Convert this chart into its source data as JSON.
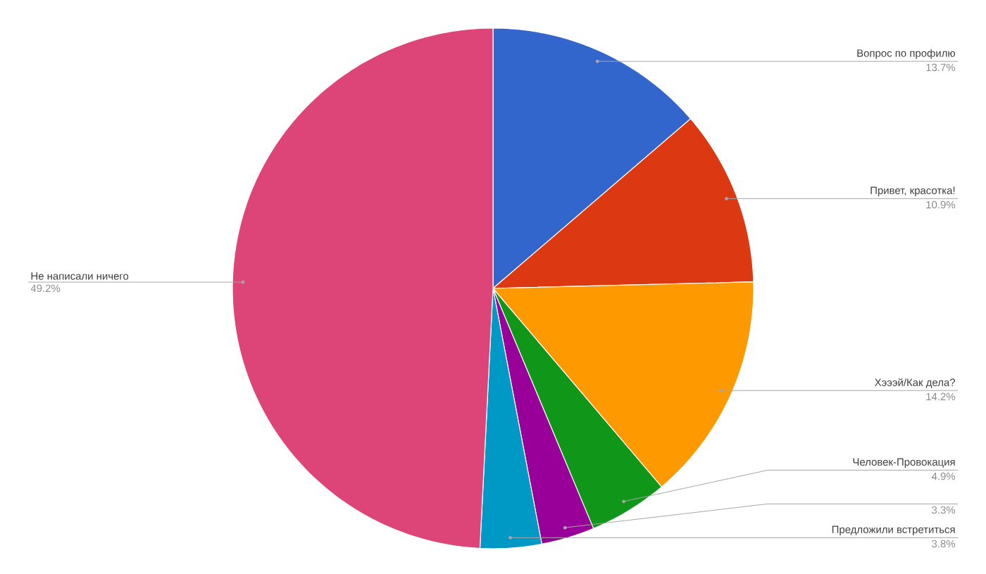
{
  "chart_data": {
    "type": "pie",
    "categories": [
      "Вопрос по профилю",
      "Привет, красотка!",
      "Хэээй/Как дела?",
      "Человек-Провокация",
      null,
      "Предложили встретиться",
      "Не написали ничего"
    ],
    "values": [
      13.7,
      10.9,
      14.2,
      4.9,
      3.3,
      3.8,
      49.2
    ],
    "value_labels": [
      "13.7%",
      "10.9%",
      "14.2%",
      "4.9%",
      "3.3%",
      "3.8%",
      "49.2%"
    ],
    "colors": [
      "#3366cc",
      "#dc3912",
      "#ff9900",
      "#109618",
      "#990099",
      "#0099c6",
      "#dd4477"
    ]
  }
}
